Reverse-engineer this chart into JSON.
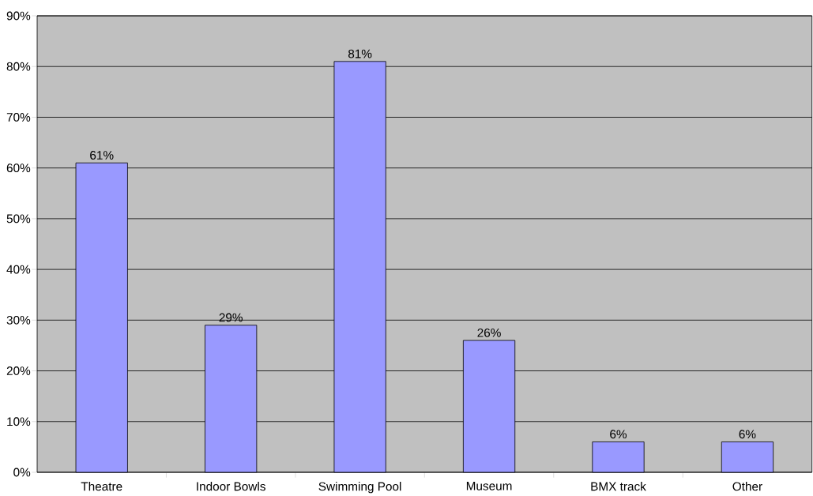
{
  "chart_data": {
    "type": "bar",
    "categories": [
      "Theatre",
      "Indoor Bowls",
      "Swimming Pool",
      "Museum",
      "BMX track",
      "Other"
    ],
    "values": [
      61,
      29,
      81,
      26,
      6,
      6
    ],
    "value_labels": [
      "61%",
      "29%",
      "81%",
      "26%",
      "6%",
      "6%"
    ],
    "color": "#9999ff",
    "ylim": [
      0,
      90
    ],
    "yticks": [
      {
        "value": 0,
        "label": "0%"
      },
      {
        "value": 10,
        "label": "10%"
      },
      {
        "value": 20,
        "label": "20%"
      },
      {
        "value": 30,
        "label": "30%"
      },
      {
        "value": 40,
        "label": "40%"
      },
      {
        "value": 50,
        "label": "50%"
      },
      {
        "value": 60,
        "label": "60%"
      },
      {
        "value": 70,
        "label": "70%"
      },
      {
        "value": 80,
        "label": "80%"
      },
      {
        "value": 90,
        "label": "90%"
      }
    ],
    "grid": "y"
  }
}
